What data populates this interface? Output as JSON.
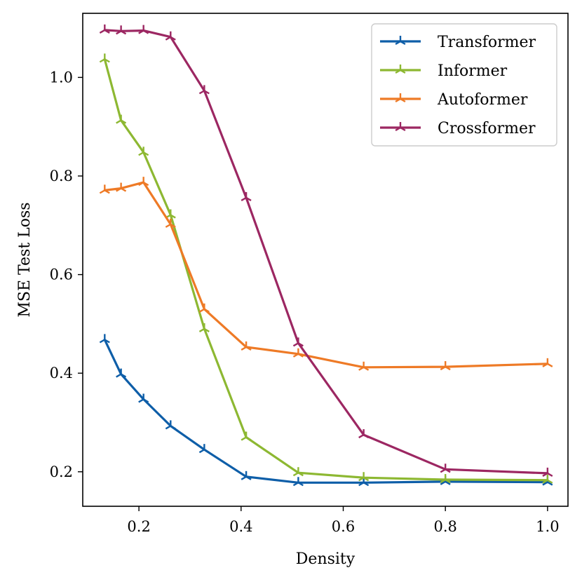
{
  "chart_data": {
    "type": "line",
    "title": "",
    "xlabel": "Density",
    "ylabel": "MSE Test Loss",
    "xlim": [
      0.09,
      1.04
    ],
    "ylim": [
      0.13,
      1.13
    ],
    "xticks": [
      0.2,
      0.4,
      0.6,
      0.8,
      1.0
    ],
    "xtick_labels": [
      "0.2",
      "0.4",
      "0.6",
      "0.8",
      "1.0"
    ],
    "yticks": [
      0.2,
      0.4,
      0.6,
      0.8,
      1.0
    ],
    "ytick_labels": [
      "0.2",
      "0.4",
      "0.6",
      "0.8",
      "1.0"
    ],
    "legend_position": "top-right",
    "marker": "tri",
    "x": [
      0.133,
      0.165,
      0.209,
      0.262,
      0.328,
      0.41,
      0.512,
      0.64,
      0.8,
      1.0
    ],
    "series": [
      {
        "name": "Transformer",
        "color": "#0e5ea8",
        "values": [
          0.468,
          0.398,
          0.347,
          0.293,
          0.245,
          0.19,
          0.178,
          0.178,
          0.18,
          0.179
        ]
      },
      {
        "name": "Informer",
        "color": "#8db832",
        "values": [
          1.037,
          0.913,
          0.848,
          0.721,
          0.49,
          0.27,
          0.198,
          0.188,
          0.184,
          0.183
        ]
      },
      {
        "name": "Autoformer",
        "color": "#ee7a26",
        "values": [
          0.771,
          0.775,
          0.787,
          0.702,
          0.53,
          0.453,
          0.439,
          0.412,
          0.413,
          0.419
        ]
      },
      {
        "name": "Crossformer",
        "color": "#9c2762",
        "values": [
          1.096,
          1.094,
          1.095,
          1.082,
          0.973,
          0.756,
          0.461,
          0.275,
          0.205,
          0.197
        ]
      }
    ]
  }
}
